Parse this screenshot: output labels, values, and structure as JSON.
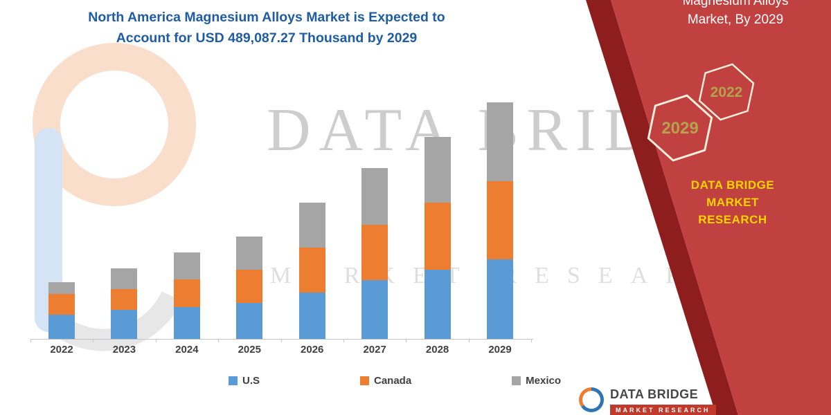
{
  "header": {
    "title_line1": "North America Magnesium Alloys Market is Expected to",
    "title_line2": "Account for USD 489,087.27 Thousand by 2029"
  },
  "ribbon": {
    "heading_line1": "Magnesium Alloys",
    "heading_line2": "Market, By 2029",
    "hexagons": [
      {
        "label": "2029"
      },
      {
        "label": "2022"
      }
    ],
    "brand_line1": "DATA BRIDGE MARKET",
    "brand_line2": "RESEARCH",
    "colors": {
      "main": "#c04140",
      "edge": "#8e1e1e",
      "heading_text": "#ffffff",
      "brand_text": "#ffd400",
      "hexagon_stroke": "#f5eedb",
      "hexagon_text": "#b5a24c"
    }
  },
  "watermark": {
    "line1": "DATA BRIDGE",
    "line2": "MARKET RESEARCH"
  },
  "chart_data": {
    "type": "bar",
    "stacked": true,
    "title": "North America Magnesium Alloys Market is Expected to Account for USD 489,087.27 Thousand by 2029",
    "categories": [
      "2022",
      "2023",
      "2024",
      "2025",
      "2026",
      "2027",
      "2028",
      "2029"
    ],
    "series": [
      {
        "name": "U.S",
        "color": "#5B9BD5",
        "values": [
          50000,
          60000,
          66000,
          74000,
          96000,
          122000,
          143000,
          164487.27
        ]
      },
      {
        "name": "Canada",
        "color": "#ED7D31",
        "values": [
          43000,
          43000,
          57000,
          69000,
          93000,
          114000,
          139000,
          161600
        ]
      },
      {
        "name": "Mexico",
        "color": "#A5A5A5",
        "values": [
          24000,
          43000,
          56000,
          69000,
          93000,
          117000,
          136000,
          163000
        ]
      }
    ],
    "units": "USD Thousand",
    "ylim": [
      0,
      520000
    ],
    "grid": false,
    "legend_position": "bottom",
    "note": "No value axis shown; segment values estimated from bar heights, 2029 total anchored to 489,087.27"
  },
  "footer_logo": {
    "name": "DATA BRIDGE",
    "tagline": "MARKET RESEARCH"
  }
}
